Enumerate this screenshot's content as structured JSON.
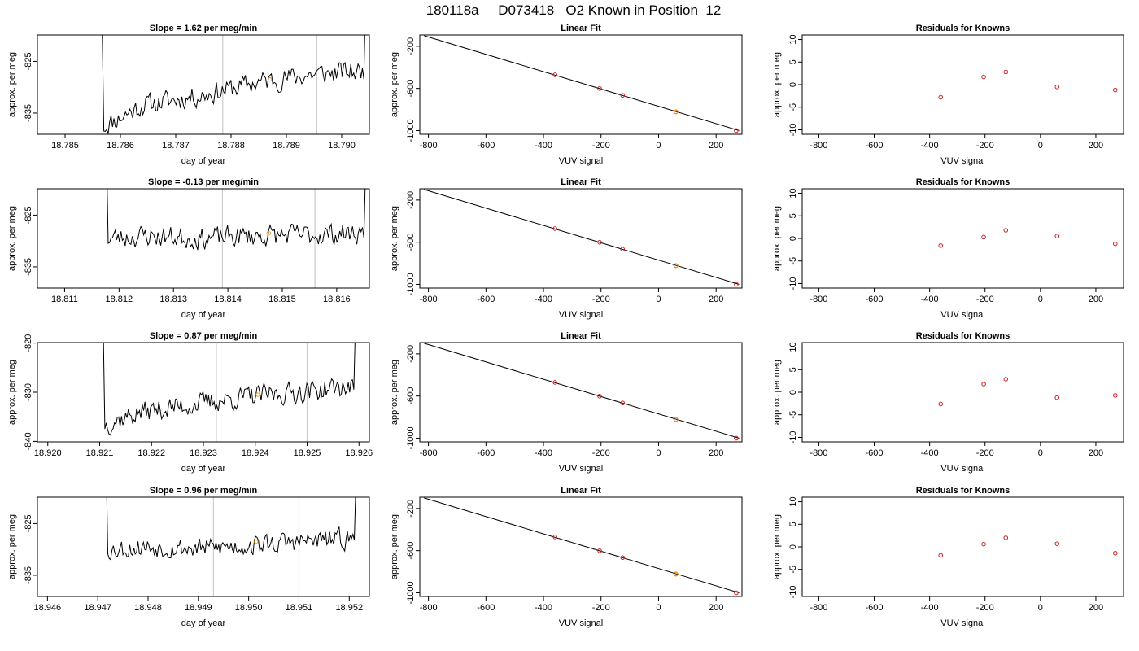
{
  "figure_title": "180118a     D073418   O2 Known in Position  12",
  "colors": {
    "trace": "#000000",
    "fit_line": "#000000",
    "points": "#cc2222",
    "marker": "#ff9900",
    "vline": "#cccccc"
  },
  "chart_data": [
    {
      "type": "line",
      "title": "Slope =  1.62  per meg/min",
      "xlabel": "day of year",
      "ylabel": "approx. per meg",
      "xlim": [
        18.7845,
        18.7905
      ],
      "ylim": [
        -839.1,
        -819.9
      ],
      "xticks": [
        "18.785",
        "18.786",
        "18.787",
        "18.788",
        "18.789",
        "18.790"
      ],
      "yticks": [
        "-825",
        "-835"
      ],
      "vlines": [
        18.78785,
        18.78955
      ],
      "marker": {
        "x": 18.7887,
        "y": -828.5
      },
      "trace": {
        "x0": 18.7857,
        "x1": 18.7904,
        "seed": 11,
        "start_y": -790,
        "end_y": -800,
        "segments": [
          [
            18.7857,
            -837.5
          ],
          [
            18.7864,
            -833.5
          ],
          [
            18.7875,
            -831.5
          ],
          [
            18.7885,
            -829.0
          ],
          [
            18.7895,
            -827.5
          ],
          [
            18.7902,
            -827.0
          ]
        ],
        "noise": 1.8
      }
    },
    {
      "type": "line",
      "title": "Slope =  -0.13  per meg/min",
      "xlabel": "day of year",
      "ylabel": "approx. per meg",
      "xlim": [
        18.8105,
        18.8166
      ],
      "ylim": [
        -839.1,
        -819.9
      ],
      "xticks": [
        "18.811",
        "18.812",
        "18.813",
        "18.814",
        "18.815",
        "18.816"
      ],
      "yticks": [
        "-825",
        "-835"
      ],
      "vlines": [
        18.8139,
        18.8156
      ],
      "marker": {
        "x": 18.81475,
        "y": -828.5
      },
      "trace": {
        "x0": 18.8118,
        "x1": 18.8165,
        "seed": 23,
        "start_y": -790,
        "end_y": -805,
        "segments": [
          [
            18.8118,
            -829.5
          ],
          [
            18.8125,
            -829.0
          ],
          [
            18.8135,
            -829.5
          ],
          [
            18.8145,
            -829.0
          ],
          [
            18.8155,
            -828.8
          ],
          [
            18.8163,
            -828.5
          ]
        ],
        "noise": 1.8
      }
    },
    {
      "type": "line",
      "title": "Slope =  0.87  per meg/min",
      "xlabel": "day of year",
      "ylabel": "approx. per meg",
      "xlim": [
        18.9198,
        18.9262
      ],
      "ylim": [
        -840.1,
        -819.9
      ],
      "xticks": [
        "18.920",
        "18.921",
        "18.922",
        "18.923",
        "18.924",
        "18.925",
        "18.926"
      ],
      "yticks": [
        "-820",
        "-830",
        "-840"
      ],
      "vlines": [
        18.92325,
        18.925
      ],
      "marker": {
        "x": 18.92405,
        "y": -830.5
      },
      "trace": {
        "x0": 18.9211,
        "x1": 18.9259,
        "seed": 37,
        "start_y": -790,
        "end_y": -805,
        "segments": [
          [
            18.9211,
            -836.5
          ],
          [
            18.9218,
            -834.0
          ],
          [
            18.9228,
            -832.5
          ],
          [
            18.9238,
            -831.0
          ],
          [
            18.9248,
            -830.0
          ],
          [
            18.9257,
            -829.0
          ]
        ],
        "noise": 1.9
      }
    },
    {
      "type": "line",
      "title": "Slope =  0.96  per meg/min",
      "xlabel": "day of year",
      "ylabel": "approx. per meg",
      "xlim": [
        18.9458,
        18.9524
      ],
      "ylim": [
        -839.1,
        -819.9
      ],
      "xticks": [
        "18.946",
        "18.947",
        "18.948",
        "18.949",
        "18.950",
        "18.951",
        "18.952"
      ],
      "yticks": [
        "-825",
        "-835"
      ],
      "vlines": [
        18.9493,
        18.951
      ],
      "marker": {
        "x": 18.95015,
        "y": -828.5
      },
      "trace": {
        "x0": 18.9472,
        "x1": 18.9521,
        "seed": 53,
        "start_y": -790,
        "end_y": -808,
        "segments": [
          [
            18.9472,
            -830.0
          ],
          [
            18.948,
            -829.5
          ],
          [
            18.949,
            -829.8
          ],
          [
            18.95,
            -829.2
          ],
          [
            18.951,
            -828.5
          ],
          [
            18.9519,
            -828.0
          ]
        ],
        "noise": 1.7
      }
    },
    {
      "type": "scatter",
      "title": "Linear Fit",
      "xlabel": "VUV signal",
      "ylabel": "approx. per meg",
      "xlim": [
        -830,
        290
      ],
      "ylim": [
        -1035,
        -93
      ],
      "xticks": [
        "-800",
        "-600",
        "-400",
        "-200",
        "0",
        "200"
      ],
      "yticks": [
        "-200",
        "-600",
        "-1000"
      ],
      "fit_line": [
        [
          -815,
          -100
        ],
        [
          280,
          -1000
        ]
      ],
      "points": [
        [
          -360,
          -471
        ],
        [
          -205,
          -601
        ],
        [
          -125,
          -666
        ],
        [
          60,
          -822
        ],
        [
          270,
          -1000
        ]
      ],
      "marker": [
        60,
        -822
      ]
    },
    {
      "type": "scatter",
      "title": "Linear Fit",
      "xlabel": "VUV signal",
      "ylabel": "approx. per meg",
      "xlim": [
        -830,
        290
      ],
      "ylim": [
        -1035,
        -93
      ],
      "xticks": [
        "-800",
        "-600",
        "-400",
        "-200",
        "0",
        "200"
      ],
      "yticks": [
        "-200",
        "-600",
        "-1000"
      ],
      "fit_line": [
        [
          -815,
          -100
        ],
        [
          280,
          -1000
        ]
      ],
      "points": [
        [
          -360,
          -471
        ],
        [
          -205,
          -601
        ],
        [
          -125,
          -666
        ],
        [
          60,
          -822
        ],
        [
          270,
          -1000
        ]
      ],
      "marker": [
        60,
        -822
      ]
    },
    {
      "type": "scatter",
      "title": "Linear Fit",
      "xlabel": "VUV signal",
      "ylabel": "approx. per meg",
      "xlim": [
        -830,
        290
      ],
      "ylim": [
        -1035,
        -93
      ],
      "xticks": [
        "-800",
        "-600",
        "-400",
        "-200",
        "0",
        "200"
      ],
      "yticks": [
        "-200",
        "-600",
        "-1000"
      ],
      "fit_line": [
        [
          -815,
          -100
        ],
        [
          280,
          -1000
        ]
      ],
      "points": [
        [
          -360,
          -471
        ],
        [
          -205,
          -601
        ],
        [
          -125,
          -666
        ],
        [
          60,
          -822
        ],
        [
          270,
          -1000
        ]
      ],
      "marker": [
        60,
        -822
      ]
    },
    {
      "type": "scatter",
      "title": "Linear Fit",
      "xlabel": "VUV signal",
      "ylabel": "approx. per meg",
      "xlim": [
        -830,
        290
      ],
      "ylim": [
        -1035,
        -93
      ],
      "xticks": [
        "-800",
        "-600",
        "-400",
        "-200",
        "0",
        "200"
      ],
      "yticks": [
        "-200",
        "-600",
        "-1000"
      ],
      "fit_line": [
        [
          -815,
          -100
        ],
        [
          280,
          -1000
        ]
      ],
      "points": [
        [
          -360,
          -471
        ],
        [
          -205,
          -601
        ],
        [
          -125,
          -666
        ],
        [
          60,
          -822
        ],
        [
          270,
          -1000
        ]
      ],
      "marker": [
        60,
        -822
      ]
    },
    {
      "type": "scatter",
      "title": "Residuals for Knowns",
      "xlabel": "VUV signal",
      "ylabel": "approx. per meg",
      "xlim": [
        -860,
        300
      ],
      "ylim": [
        -11,
        11
      ],
      "xticks": [
        "-800",
        "-600",
        "-400",
        "-200",
        "0",
        "200"
      ],
      "yticks": [
        "10",
        "5",
        "0",
        "-5",
        "-10"
      ],
      "points": [
        [
          -360,
          -2.8
        ],
        [
          -205,
          1.7
        ],
        [
          -125,
          2.8
        ],
        [
          60,
          -0.5
        ],
        [
          270,
          -1.2
        ]
      ]
    },
    {
      "type": "scatter",
      "title": "Residuals for Knowns",
      "xlabel": "VUV signal",
      "ylabel": "approx. per meg",
      "xlim": [
        -860,
        300
      ],
      "ylim": [
        -11,
        11
      ],
      "xticks": [
        "-800",
        "-600",
        "-400",
        "-200",
        "0",
        "200"
      ],
      "yticks": [
        "10",
        "5",
        "0",
        "-5",
        "-10"
      ],
      "points": [
        [
          -360,
          -1.6
        ],
        [
          -205,
          0.3
        ],
        [
          -125,
          1.8
        ],
        [
          60,
          0.5
        ],
        [
          270,
          -1.2
        ]
      ]
    },
    {
      "type": "scatter",
      "title": "Residuals for Knowns",
      "xlabel": "VUV signal",
      "ylabel": "approx. per meg",
      "xlim": [
        -860,
        300
      ],
      "ylim": [
        -11,
        11
      ],
      "xticks": [
        "-800",
        "-600",
        "-400",
        "-200",
        "0",
        "200"
      ],
      "yticks": [
        "10",
        "5",
        "0",
        "-5",
        "-10"
      ],
      "points": [
        [
          -360,
          -2.6
        ],
        [
          -205,
          1.8
        ],
        [
          -125,
          2.9
        ],
        [
          60,
          -1.2
        ],
        [
          270,
          -0.7
        ]
      ]
    },
    {
      "type": "scatter",
      "title": "Residuals for Knowns",
      "xlabel": "VUV signal",
      "ylabel": "approx. per meg",
      "xlim": [
        -860,
        300
      ],
      "ylim": [
        -11,
        11
      ],
      "xticks": [
        "-800",
        "-600",
        "-400",
        "-200",
        "0",
        "200"
      ],
      "yticks": [
        "10",
        "5",
        "0",
        "-5",
        "-10"
      ],
      "points": [
        [
          -360,
          -1.9
        ],
        [
          -205,
          0.6
        ],
        [
          -125,
          2.0
        ],
        [
          60,
          0.7
        ],
        [
          270,
          -1.4
        ]
      ]
    }
  ]
}
